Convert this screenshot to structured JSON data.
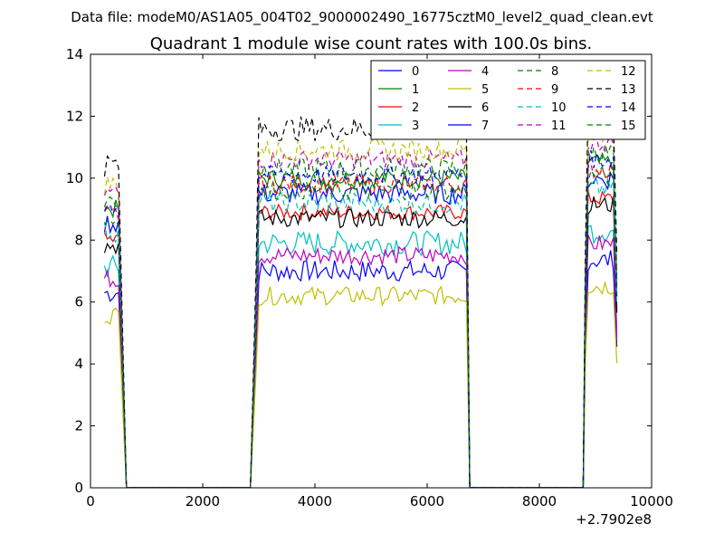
{
  "figure": {
    "suptitle": "Data file: modeM0/AS1A05_004T02_9000002490_16775cztM0_level2_quad_clean.evt",
    "offset_label": "+2.7902e8"
  },
  "chart_data": {
    "type": "line",
    "title": "Quadrant 1 module wise count rates with 100.0s bins.",
    "xlabel": "",
    "ylabel": "",
    "xlim": [
      0,
      10000
    ],
    "ylim": [
      0,
      14
    ],
    "x_offset": 279020000,
    "xticks": [
      0,
      2000,
      4000,
      6000,
      8000,
      10000
    ],
    "xtick_labels": [
      "0",
      "2000",
      "4000",
      "6000",
      "8000",
      "10000"
    ],
    "yticks": [
      0,
      2,
      4,
      6,
      8,
      10,
      12,
      14
    ],
    "ytick_labels": [
      "0",
      "2",
      "4",
      "6",
      "8",
      "10",
      "12",
      "14"
    ],
    "grid": false,
    "legend_position": "top-right",
    "legend_columns": 4,
    "x_bins_approx": "0–600, 2900–6700, 8800–9400 active; zero elsewhere",
    "series": [
      {
        "name": "0",
        "color": "#0000ff",
        "style": "solid",
        "level": 7.0,
        "jitter": 0.35
      },
      {
        "name": "1",
        "color": "#008000",
        "style": "solid",
        "level": 10.0,
        "jitter": 0.3
      },
      {
        "name": "2",
        "color": "#ff0000",
        "style": "solid",
        "level": 8.9,
        "jitter": 0.25
      },
      {
        "name": "3",
        "color": "#00bfbf",
        "style": "solid",
        "level": 7.9,
        "jitter": 0.4
      },
      {
        "name": "4",
        "color": "#bf00bf",
        "style": "solid",
        "level": 7.5,
        "jitter": 0.3
      },
      {
        "name": "5",
        "color": "#bfbf00",
        "style": "solid",
        "level": 6.2,
        "jitter": 0.3
      },
      {
        "name": "6",
        "color": "#000000",
        "style": "solid",
        "level": 8.7,
        "jitter": 0.3
      },
      {
        "name": "7",
        "color": "#0000ff",
        "style": "solid",
        "level": 9.5,
        "jitter": 0.35
      },
      {
        "name": "8",
        "color": "#008000",
        "style": "dashed",
        "level": 10.3,
        "jitter": 0.35
      },
      {
        "name": "9",
        "color": "#ff0000",
        "style": "dashed",
        "level": 9.8,
        "jitter": 0.3
      },
      {
        "name": "10",
        "color": "#00bfbf",
        "style": "dashed",
        "level": 9.2,
        "jitter": 0.35
      },
      {
        "name": "11",
        "color": "#bf00bf",
        "style": "dashed",
        "level": 10.6,
        "jitter": 0.3
      },
      {
        "name": "12",
        "color": "#bfbf00",
        "style": "dashed",
        "level": 10.9,
        "jitter": 0.35
      },
      {
        "name": "13",
        "color": "#000000",
        "style": "dashed",
        "level": 11.6,
        "jitter": 0.4
      },
      {
        "name": "14",
        "color": "#0000ff",
        "style": "dashed",
        "level": 10.1,
        "jitter": 0.3
      },
      {
        "name": "15",
        "color": "#008000",
        "style": "dashed",
        "level": 9.6,
        "jitter": 0.3
      }
    ]
  }
}
